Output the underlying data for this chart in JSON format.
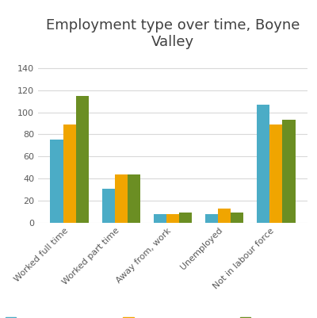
{
  "title": "Employment type over time, Boyne\nValley",
  "categories": [
    "Worked full time",
    "Worked part time",
    "Away from, work",
    "Unemployed",
    "Not in labour force"
  ],
  "series": {
    "Boyne Valley 2021": [
      75,
      31,
      8,
      8,
      107
    ],
    "Boyne Valley 2016": [
      89,
      44,
      8,
      13,
      89
    ],
    "Boyne Valley 2011": [
      115,
      44,
      9,
      9,
      93
    ]
  },
  "colors": {
    "Boyne Valley 2021": "#4BACC6",
    "Boyne Valley 2016": "#F0A500",
    "Boyne Valley 2011": "#6B8E23"
  },
  "ylim": [
    0,
    150
  ],
  "yticks": [
    0,
    20,
    40,
    60,
    80,
    100,
    120,
    140
  ],
  "background_color": "#ffffff",
  "grid_color": "#d9d9d9",
  "title_fontsize": 13,
  "tick_fontsize": 8,
  "legend_fontsize": 8
}
